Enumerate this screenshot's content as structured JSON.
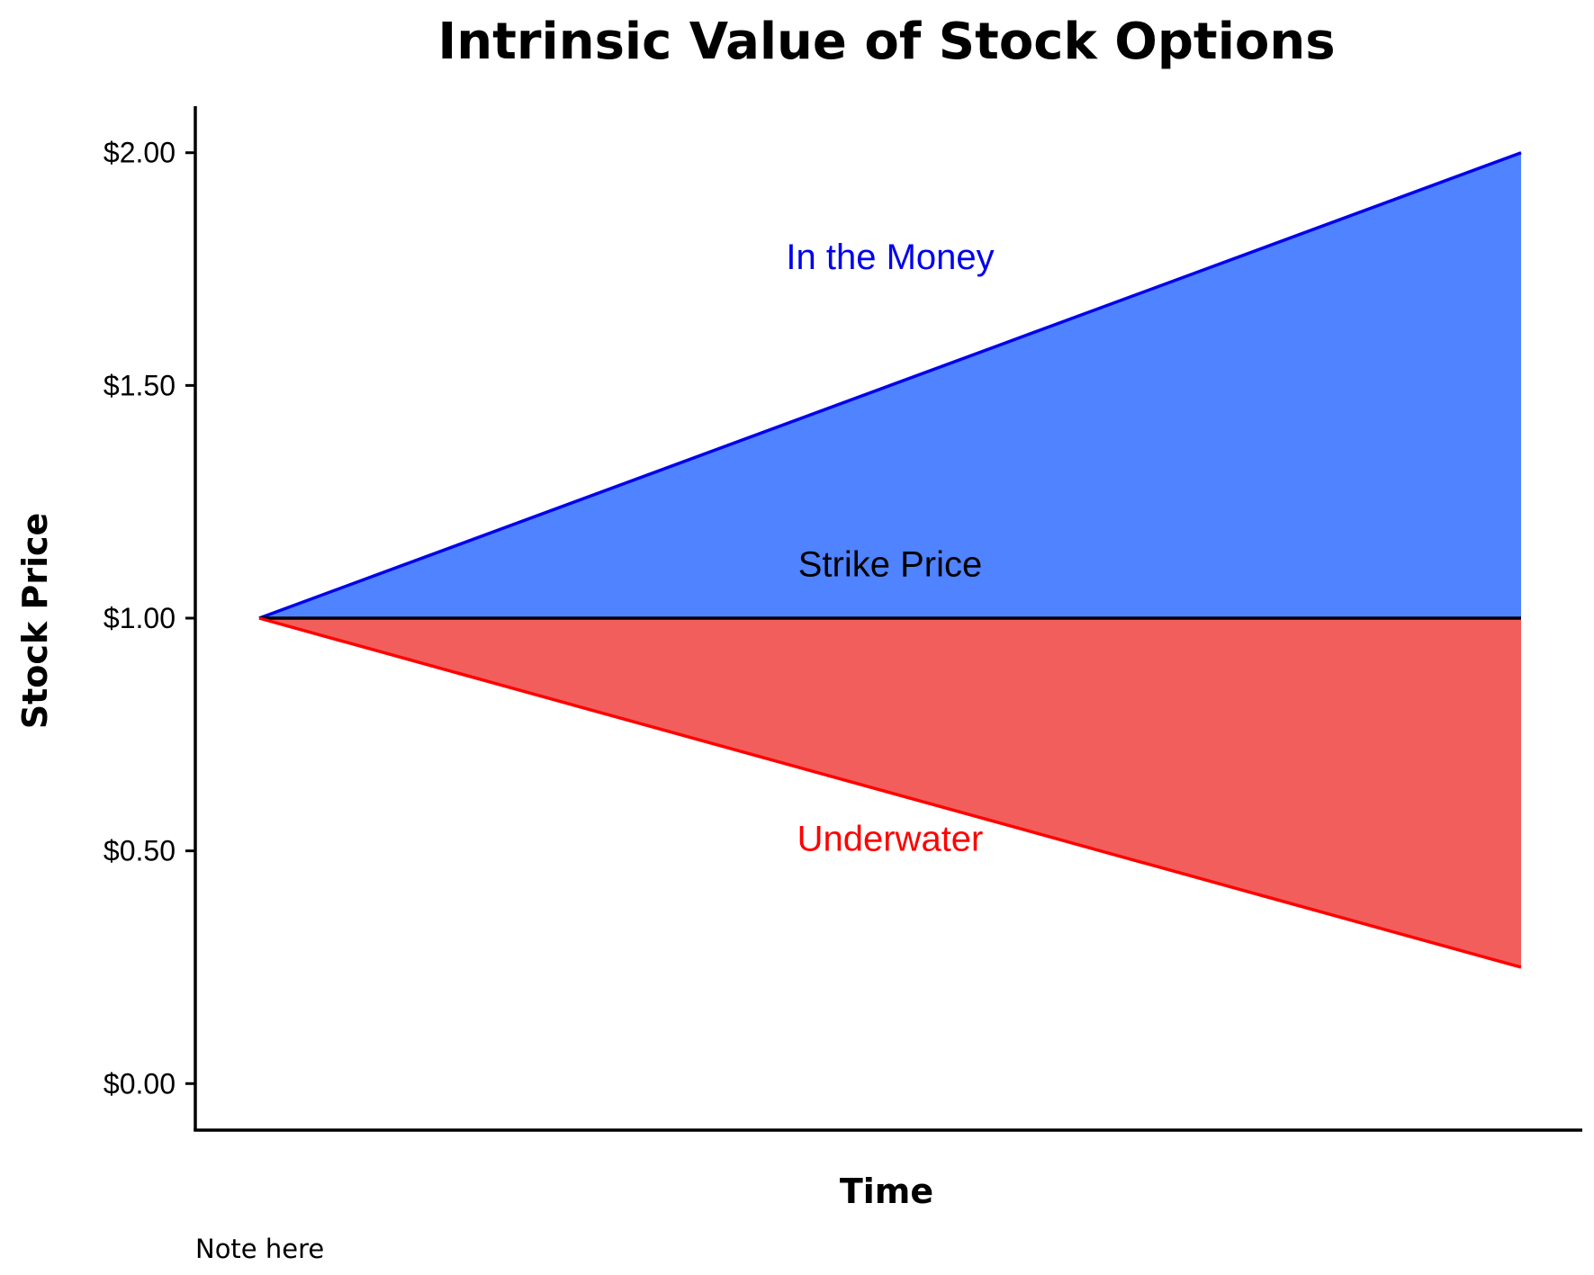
{
  "chart_data": {
    "type": "area",
    "title": "Intrinsic Value of Stock Options",
    "xlabel": "Time",
    "ylabel": "Stock Price",
    "note": "Note here",
    "ylim": [
      -0.1,
      2.1
    ],
    "yticks": [
      {
        "value": 0.0,
        "label": "$0.00"
      },
      {
        "value": 0.5,
        "label": "$0.50"
      },
      {
        "value": 1.0,
        "label": "$1.00"
      },
      {
        "value": 1.5,
        "label": "$1.50"
      },
      {
        "value": 2.0,
        "label": "$2.00"
      }
    ],
    "x": [
      0,
      1
    ],
    "series": [
      {
        "values": [
          1.0,
          2.0
        ],
        "color": "#0000ee",
        "fill": "#4f83ff"
      },
      {
        "values": [
          1.0,
          1.0
        ],
        "color": "#000000"
      },
      {
        "values": [
          1.0,
          0.25
        ],
        "color": "#ff0000",
        "fill": "#f25e5b"
      }
    ],
    "annotations": [
      {
        "text": "In the Money",
        "x": 0.5,
        "y": 1.75,
        "color": "#0000ee"
      },
      {
        "text": "Strike Price",
        "x": 0.5,
        "y": 1.09,
        "color": "#000000"
      },
      {
        "text": "Underwater",
        "x": 0.5,
        "y": 0.5,
        "color": "#ff0000"
      }
    ],
    "grid": false,
    "legend": "none"
  }
}
